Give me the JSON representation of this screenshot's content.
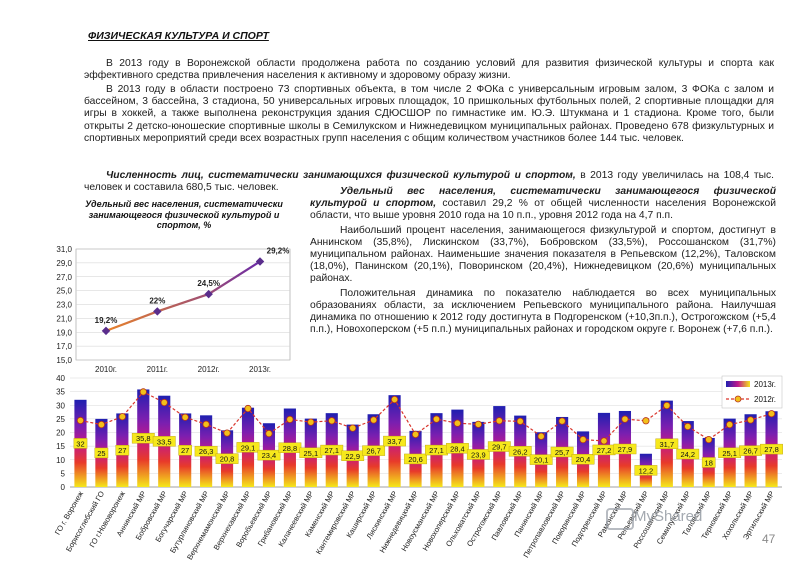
{
  "heading": "ФИЗИЧЕСКАЯ КУЛЬТУРА И СПОРТ",
  "paragraphs": {
    "p1": "В 2013 году в Воронежской области продолжена работа по созданию условий для развития физической культуры и спорта как эффективного средства привлечения населения к активному и здоровому образу жизни.",
    "p2": "В 2013 году в области построено 73 спортивных объекта, в том числе 2 ФОКа с универсальным игровым залом, 3 ФОКа с залом и бассейном, 3 бассейна, 3 стадиона, 50 универсальных игровых площадок, 10 пришкольных футбольных полей, 2 спортивные площадки для игры в хоккей, а также выполнена реконструкция здания СДЮСШОР по гимнастике им. Ю.Э. Штукмана и 1 стадиона. Кроме того, были открыты 2 детско-юношеские спортивные школы в Семилукском и Нижнедевицком муниципальных районах. Проведено 678 физкультурных и спортивных мероприятий среди всех возрастных групп населения с общим количеством участников более 144 тыс. человек.",
    "p3_bold": "Численность лиц, систематически занимающихся физической культурой и спортом,",
    "p3_rest": " в 2013 году увеличилась на 108,4 тыс. человек и составила 680,5 тыс. человек.",
    "p4_bold": "Удельный вес населения, систематически занимающегося физической культурой и спортом,",
    "p4_rest": " составил 29,2 % от общей численности населения Воронежской области, что выше уровня 2010 года на 10 п.п., уровня 2012 года на 4,7 п.п.",
    "p5": "Наибольший процент населения, занимающегося физкультурой и спортом, достигнут в Аннинском (35,8%), Лискинском (33,7%), Бобровском (33,5%), Россошанском (31,7%) муниципальном районах. Наименьшие значения показателя в Репьевском (12,2%), Таловском (18,0%), Панинском (20,1%), Поворинском (20,4%), Нижнедевицком (20,6%) муниципальных районах.",
    "p6": "Положительная динамика по показателю наблюдается во всех муниципальных образованиях области, за исключением Репьевского муниципального района. Наилучшая динамика по отношению к 2012 году достигнута в Подгоренском (+10,3п.п.), Острогожском (+5,4 п.п.), Новохоперском (+5 п.п.) муниципальных районах и городском округе г. Воронеж (+7,6 п.п.)."
  },
  "chart_data": [
    {
      "type": "line",
      "title": "Удельный вес населения, систематически занимающегося физической культурой и спортом, %",
      "categories": [
        "2010г.",
        "2011г.",
        "2012г.",
        "2013г."
      ],
      "values": [
        19.2,
        22,
        24.5,
        29.2
      ],
      "value_labels": [
        "19,2%",
        "22%",
        "24,5%",
        "29,2%"
      ],
      "ylim": [
        15,
        31
      ],
      "yticks": [
        "15,0",
        "17,0",
        "19,0",
        "21,0",
        "23,0",
        "25,0",
        "27,0",
        "29,0",
        "31,0"
      ],
      "grid": true,
      "colors": {
        "line_start": "#e8822a",
        "line_end": "#6a2aa8",
        "marker": "#5a2d8c"
      }
    },
    {
      "type": "bar",
      "categories": [
        "ГО г. Воронеж",
        "Борисоглебский ГО",
        "ГО г.Нововоронеж",
        "Аннинский МР",
        "Бобровский МР",
        "Богучарский МР",
        "Бутурлиновский МР",
        "Верхнемамонский МР",
        "Верхнехавский МР",
        "Воробьевский МР",
        "Грибановский МР",
        "Калачеевский МР",
        "Каменский МР",
        "Кантемировский МР",
        "Каширский МР",
        "Лискинский МР",
        "Нижнедевицкий МР",
        "Новоусманский МР",
        "Новохоперский МР",
        "Ольховатский МР",
        "Острогожский МР",
        "Павловский МР",
        "Панинский МР",
        "Петропавловский МР",
        "Поворинский МР",
        "Подгоренский МР",
        "Рамонский МР",
        "Репьевский МР",
        "Россошанский МР",
        "Семилукский МР",
        "Таловский МР",
        "Терновский МР",
        "Хохольский МР",
        "Эртильский МР"
      ],
      "series": [
        {
          "name": "2013г.",
          "values": [
            32,
            25,
            27,
            35.8,
            33.5,
            27,
            26.3,
            20.8,
            29.1,
            23.4,
            28.8,
            25.1,
            27.1,
            22.9,
            26.7,
            33.7,
            20.6,
            27.1,
            28.4,
            23.9,
            29.7,
            26.2,
            20.1,
            25.7,
            20.4,
            27.2,
            27.9,
            12.2,
            31.7,
            24.2,
            18,
            25.1,
            26.7,
            27.8
          ]
        },
        {
          "name": "2012г.",
          "values": [
            24.4,
            22.9,
            25.8,
            34.9,
            31,
            25.6,
            23,
            19.8,
            28.8,
            19.6,
            24.8,
            23.8,
            24.3,
            21.6,
            24.6,
            32.1,
            19.3,
            24.9,
            23.4,
            23,
            24.3,
            24.1,
            18.6,
            24.2,
            17.4,
            16.9,
            24.9,
            24.3,
            29.9,
            22.2,
            17.4,
            22.9,
            24.6,
            26.9
          ]
        }
      ],
      "value_labels": [
        "32",
        "25",
        "27",
        "35,8",
        "33,5",
        "27",
        "26,3",
        "20,8",
        "29,1",
        "23,4",
        "28,8",
        "25,1",
        "27,1",
        "22,9",
        "26,7",
        "33,7",
        "20,6",
        "27,1",
        "28,4",
        "23,9",
        "29,7",
        "26,2",
        "20,1",
        "25,7",
        "20,4",
        "27,2",
        "27,9",
        "12,2",
        "31,7",
        "24,2",
        "18",
        "25,1",
        "26,7",
        "27,8"
      ],
      "ylim": [
        0,
        40
      ],
      "yticks": [
        "0",
        "5",
        "10",
        "15",
        "20",
        "25",
        "30",
        "35",
        "40"
      ],
      "legend": "top-right",
      "grid": true,
      "colors": {
        "bar_top": "#1f1fb0",
        "bar_mid": "#c0198c",
        "bar_low": "#e83a2a",
        "bar_bottom": "#f5e81a",
        "line_2012": "#d9342b",
        "marker_2012": "#f2c01a"
      }
    }
  ],
  "watermark": "MyShared",
  "page_number": "47"
}
